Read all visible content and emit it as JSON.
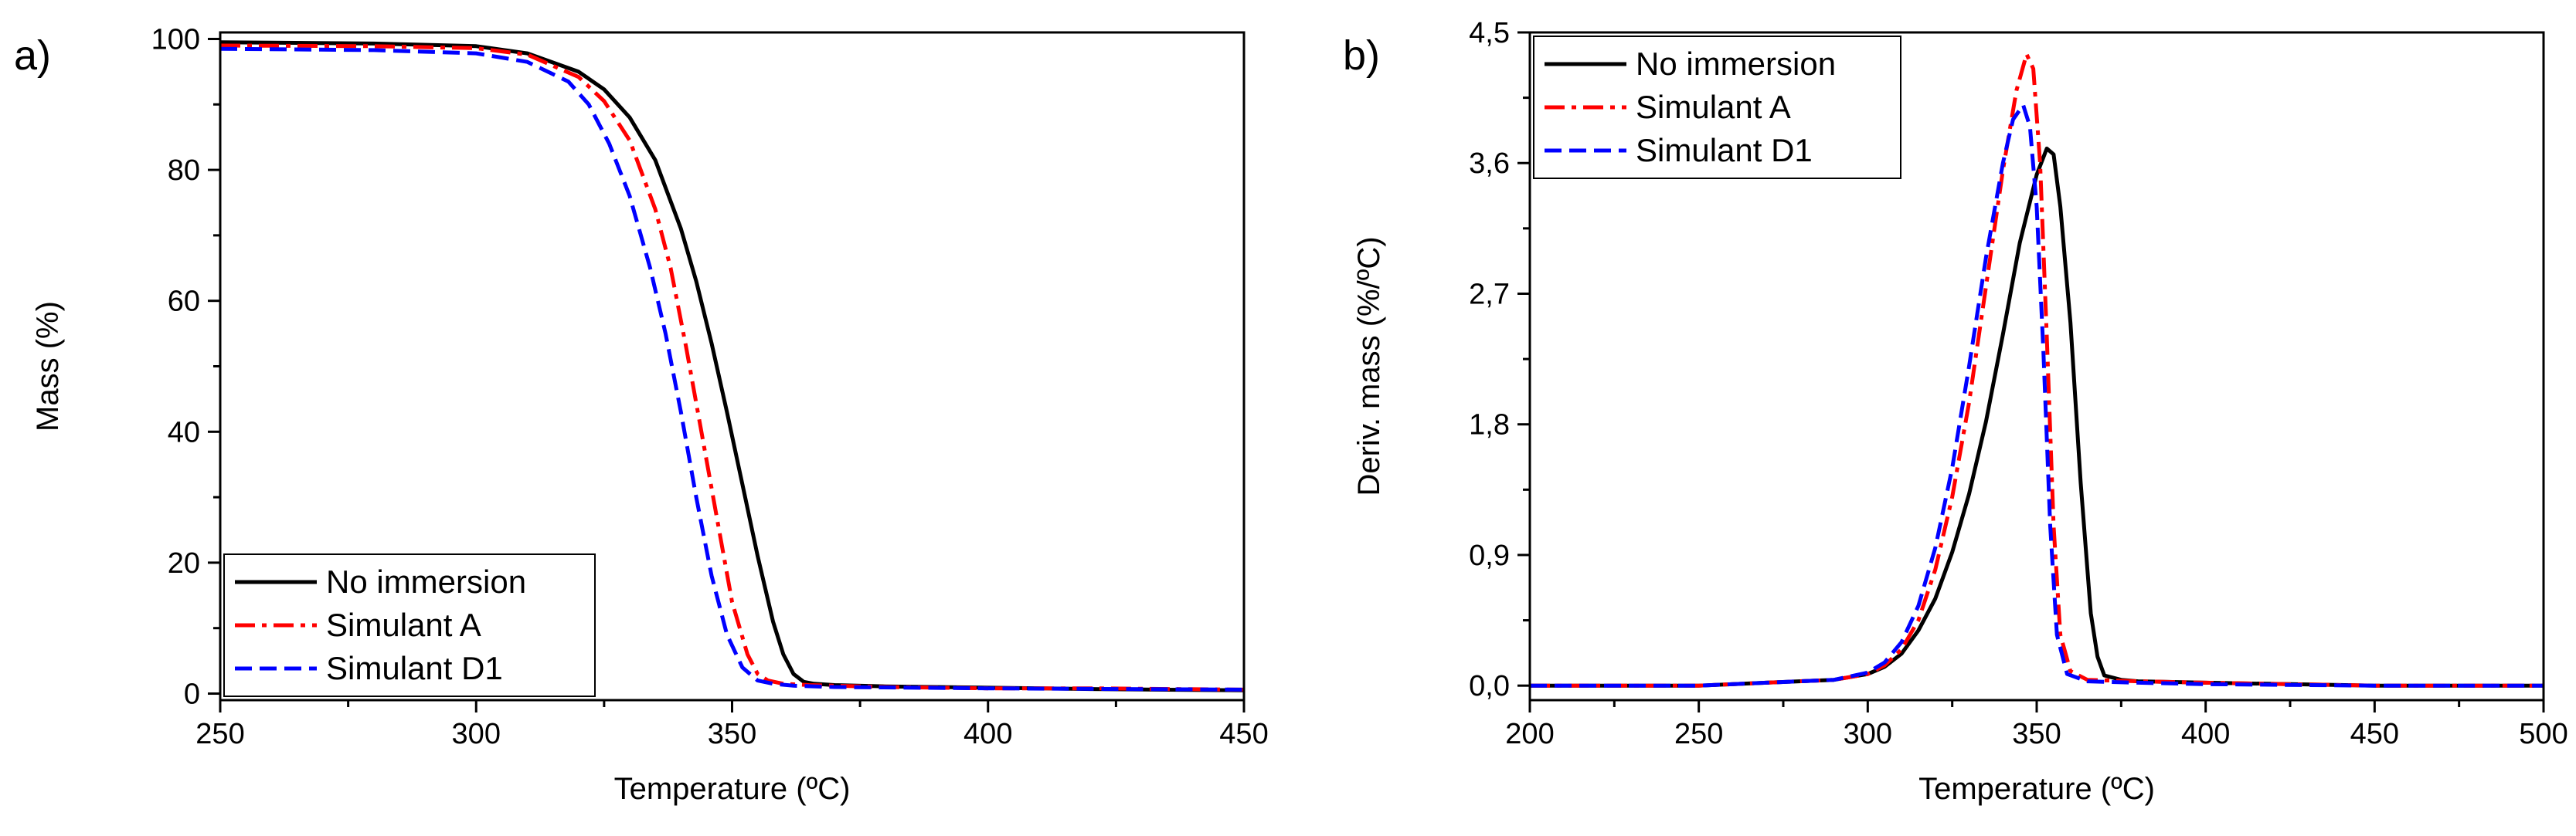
{
  "chart_data": [
    {
      "type": "line",
      "panel_label": "a)",
      "title": "",
      "xlabel": "Temperature (ºC)",
      "ylabel": "Mass (%)",
      "xlim": [
        250,
        450
      ],
      "ylim": [
        -1,
        101
      ],
      "xticks": [
        250,
        300,
        350,
        400,
        450
      ],
      "xtick_labels": [
        "250",
        "300",
        "350",
        "400",
        "450"
      ],
      "yticks": [
        0,
        20,
        40,
        60,
        80,
        100
      ],
      "ytick_labels": [
        "0",
        "20",
        "40",
        "60",
        "80",
        "100"
      ],
      "grid": false,
      "legend_position": "bottom-left",
      "series": [
        {
          "name": "No immersion",
          "color": "#000000",
          "dash": "solid",
          "x": [
            250,
            280,
            300,
            310,
            320,
            325,
            330,
            335,
            340,
            343,
            346,
            349,
            352,
            355,
            358,
            360,
            362,
            364,
            366,
            370,
            380,
            400,
            420,
            450
          ],
          "y": [
            99.5,
            99.3,
            98.9,
            97.8,
            95.0,
            92.3,
            88.0,
            81.5,
            71.0,
            63.0,
            53.5,
            43.0,
            32.0,
            21.0,
            11.0,
            6.0,
            3.0,
            1.8,
            1.5,
            1.3,
            1.1,
            0.9,
            0.7,
            0.5
          ]
        },
        {
          "name": "Simulant A",
          "color": "#ff0000",
          "dash": "dash-dot",
          "x": [
            250,
            280,
            300,
            310,
            320,
            325,
            330,
            335,
            338,
            341,
            344,
            347,
            350,
            353,
            355,
            357,
            360,
            365,
            380,
            400,
            420,
            450
          ],
          "y": [
            99.0,
            98.9,
            98.6,
            97.6,
            94.2,
            90.5,
            84.5,
            74.0,
            65.0,
            53.0,
            40.0,
            27.0,
            14.0,
            6.0,
            3.0,
            2.0,
            1.5,
            1.3,
            1.0,
            0.8,
            0.8,
            0.6
          ]
        },
        {
          "name": "Simulant D1",
          "color": "#0000ff",
          "dash": "dash",
          "x": [
            250,
            280,
            300,
            310,
            318,
            322,
            326,
            330,
            334,
            337,
            340,
            343,
            346,
            349,
            352,
            355,
            358,
            362,
            370,
            400,
            450
          ],
          "y": [
            98.5,
            98.3,
            97.8,
            96.5,
            93.5,
            90.0,
            84.0,
            76.0,
            65.0,
            55.0,
            43.0,
            30.0,
            18.0,
            9.0,
            4.0,
            2.0,
            1.5,
            1.2,
            1.0,
            0.8,
            0.6
          ]
        }
      ]
    },
    {
      "type": "line",
      "panel_label": "b)",
      "title": "",
      "xlabel": "Temperature (ºC)",
      "ylabel": "Deriv. mass (%/ºC)",
      "xlim": [
        200,
        500
      ],
      "ylim": [
        -0.1,
        4.5
      ],
      "xticks": [
        200,
        250,
        300,
        350,
        400,
        450,
        500
      ],
      "xtick_labels": [
        "200",
        "250",
        "300",
        "350",
        "400",
        "450",
        "500"
      ],
      "yticks": [
        0,
        0.9,
        1.8,
        2.7,
        3.6,
        4.5
      ],
      "ytick_labels": [
        "0,0",
        "0,9",
        "1,8",
        "2,7",
        "3,6",
        "4,5"
      ],
      "grid": false,
      "legend_position": "top-left",
      "series": [
        {
          "name": "No immersion",
          "color": "#000000",
          "dash": "solid",
          "x": [
            200,
            250,
            270,
            290,
            300,
            305,
            310,
            315,
            320,
            325,
            330,
            335,
            340,
            345,
            350,
            353,
            355,
            357,
            360,
            363,
            366,
            368,
            370,
            375,
            380,
            400,
            450,
            500
          ],
          "y": [
            0.0,
            0.0,
            0.02,
            0.04,
            0.08,
            0.13,
            0.22,
            0.38,
            0.6,
            0.92,
            1.32,
            1.82,
            2.42,
            3.05,
            3.52,
            3.7,
            3.66,
            3.3,
            2.5,
            1.4,
            0.5,
            0.2,
            0.07,
            0.04,
            0.03,
            0.02,
            0.0,
            0.0
          ]
        },
        {
          "name": "Simulant A",
          "color": "#ff0000",
          "dash": "dash-dot",
          "x": [
            200,
            250,
            270,
            290,
            300,
            305,
            310,
            315,
            320,
            325,
            330,
            335,
            340,
            344,
            347,
            349,
            351,
            353,
            355,
            357,
            360,
            365,
            380,
            400,
            450,
            500
          ],
          "y": [
            0.0,
            0.0,
            0.02,
            0.04,
            0.08,
            0.14,
            0.25,
            0.45,
            0.8,
            1.3,
            1.95,
            2.75,
            3.55,
            4.1,
            4.35,
            4.25,
            3.6,
            2.4,
            1.1,
            0.35,
            0.1,
            0.04,
            0.03,
            0.02,
            0.0,
            0.0
          ]
        },
        {
          "name": "Simulant D1",
          "color": "#0000ff",
          "dash": "dash",
          "x": [
            200,
            250,
            270,
            290,
            300,
            305,
            310,
            315,
            320,
            325,
            330,
            335,
            340,
            343,
            346,
            348,
            350,
            352,
            354,
            356,
            359,
            365,
            380,
            400,
            450,
            500
          ],
          "y": [
            0.0,
            0.0,
            0.02,
            0.04,
            0.09,
            0.16,
            0.3,
            0.55,
            0.95,
            1.5,
            2.2,
            2.95,
            3.6,
            3.9,
            4.0,
            3.85,
            3.3,
            2.3,
            1.1,
            0.35,
            0.08,
            0.03,
            0.02,
            0.01,
            0.0,
            0.0
          ]
        }
      ]
    }
  ]
}
